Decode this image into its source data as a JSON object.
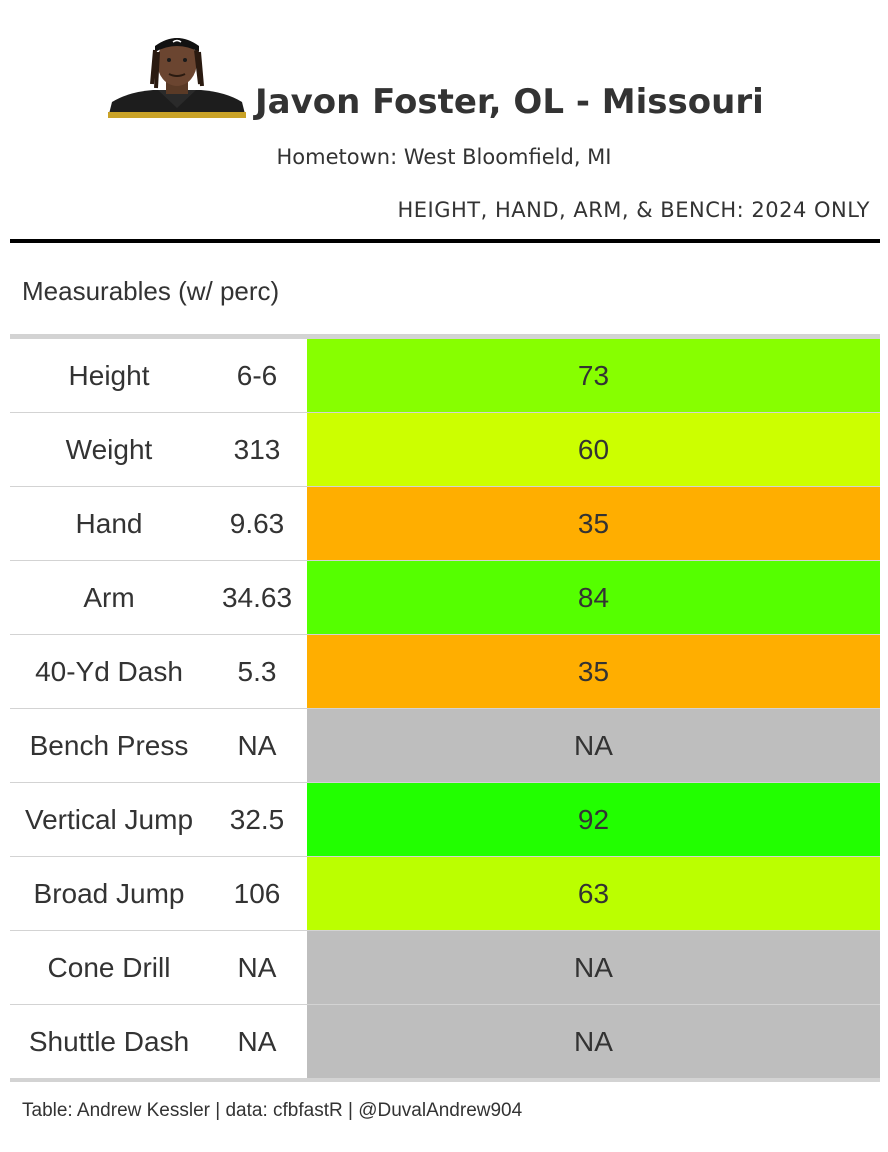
{
  "header": {
    "title": "Javon Foster, OL - Missouri",
    "subtitle": "Hometown: West Bloomfield, MI",
    "note": "HEIGHT, HAND, ARM, & BENCH: 2024 ONLY",
    "photo_icon": "player-headshot"
  },
  "section_label": "Measurables (w/ perc)",
  "chart_data": {
    "type": "table",
    "columns": [
      "measurable",
      "value",
      "percentile"
    ],
    "rows": [
      {
        "label": "Height",
        "value": "6-6",
        "percentile": "73",
        "color": "#87FF00"
      },
      {
        "label": "Weight",
        "value": "313",
        "percentile": "60",
        "color": "#CCFF00"
      },
      {
        "label": "Hand",
        "value": "9.63",
        "percentile": "35",
        "color": "#FFAE00"
      },
      {
        "label": "Arm",
        "value": "34.63",
        "percentile": "84",
        "color": "#55FF00"
      },
      {
        "label": "40-Yd Dash",
        "value": "5.3",
        "percentile": "35",
        "color": "#FFAE00"
      },
      {
        "label": "Bench Press",
        "value": "NA",
        "percentile": "NA",
        "color": "#BEBEBE"
      },
      {
        "label": "Vertical Jump",
        "value": "32.5",
        "percentile": "92",
        "color": "#22FF00"
      },
      {
        "label": "Broad Jump",
        "value": "106",
        "percentile": "63",
        "color": "#BBFF00"
      },
      {
        "label": "Cone Drill",
        "value": "NA",
        "percentile": "NA",
        "color": "#BEBEBE"
      },
      {
        "label": "Shuttle Dash",
        "value": "NA",
        "percentile": "NA",
        "color": "#BEBEBE"
      }
    ]
  },
  "footer": "Table: Andrew Kessler | data: cfbfastR | @DuvalAndrew904"
}
